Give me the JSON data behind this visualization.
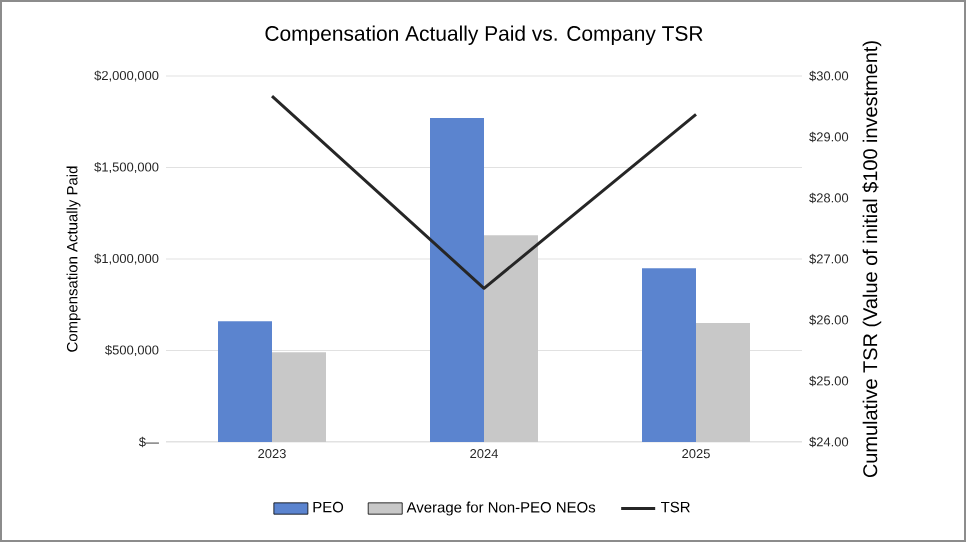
{
  "chart_data": {
    "type": "bar",
    "title": "Compensation Actually Paid vs. Company TSR",
    "ylabel": "Compensation Actually Paid",
    "y2label": "Cumulative TSR (Value of initial $100 investment)",
    "categories": [
      "2023",
      "2024",
      "2025"
    ],
    "series": [
      {
        "name": "PEO",
        "color": "#5b84cf",
        "values": [
          660000,
          1770000,
          950000
        ]
      },
      {
        "name": "Average for Non-PEO NEOs",
        "color": "#c8c8c8",
        "values": [
          490000,
          1130000,
          650000
        ]
      },
      {
        "name": "TSR",
        "type": "line",
        "axis": "y2",
        "color": "#262626",
        "values": [
          29.67,
          26.52,
          29.37
        ]
      }
    ],
    "ylim": [
      0,
      2000000
    ],
    "yticks": [
      {
        "value": 0,
        "label": "$—"
      },
      {
        "value": 500000,
        "label": "$500,000"
      },
      {
        "value": 1000000,
        "label": "$1,000,000"
      },
      {
        "value": 1500000,
        "label": "$1,500,000"
      },
      {
        "value": 2000000,
        "label": "$2,000,000"
      }
    ],
    "y2lim": [
      24,
      30
    ],
    "y2ticks": [
      {
        "value": 24,
        "label": "$24.00"
      },
      {
        "value": 25,
        "label": "$25.00"
      },
      {
        "value": 26,
        "label": "$26.00"
      },
      {
        "value": 27,
        "label": "$27.00"
      },
      {
        "value": 28,
        "label": "$28.00"
      },
      {
        "value": 29,
        "label": "$29.00"
      },
      {
        "value": 30,
        "label": "$30.00"
      }
    ],
    "grid": "y",
    "legend": "bottom"
  }
}
